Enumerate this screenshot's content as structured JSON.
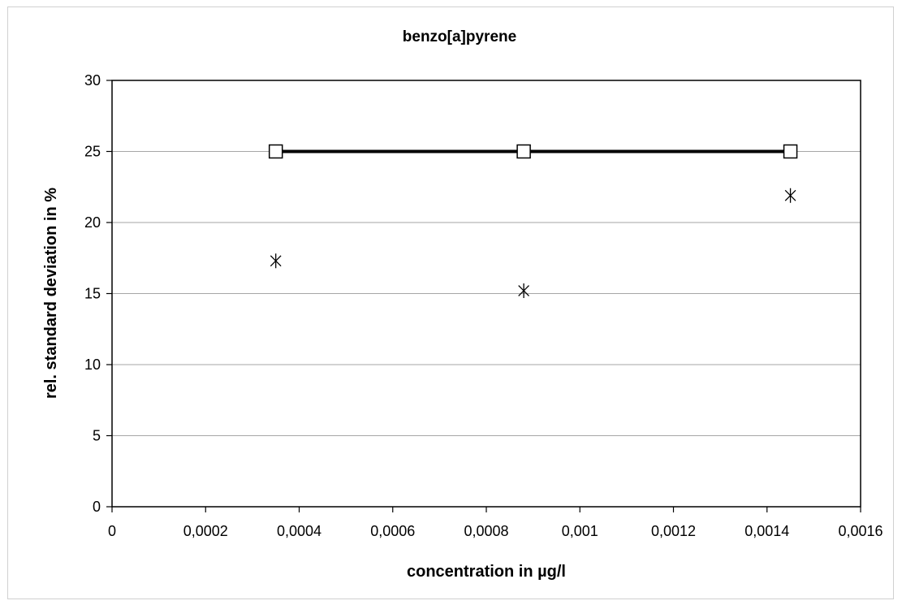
{
  "chart_data": {
    "type": "scatter",
    "title": "benzo[a]pyrene",
    "xlabel": "concentration in µg/l",
    "ylabel": "rel. standard deviation in %",
    "xlim": [
      0,
      0.0016
    ],
    "ylim": [
      0,
      30
    ],
    "x_ticks": [
      "0",
      "0,0002",
      "0,0004",
      "0,0006",
      "0,0008",
      "0,001",
      "0,0012",
      "0,0014",
      "0,0016"
    ],
    "y_ticks": [
      "0",
      "5",
      "10",
      "15",
      "20",
      "25",
      "30"
    ],
    "grid": "horizontal",
    "legend": "none",
    "series": [
      {
        "marker": "open-square",
        "line": true,
        "color": "#000000",
        "x": [
          0.00035,
          0.00088,
          0.00145
        ],
        "y": [
          25,
          25,
          25
        ]
      },
      {
        "marker": "asterisk",
        "line": false,
        "color": "#000000",
        "x": [
          0.00035,
          0.00088,
          0.00145
        ],
        "y": [
          17.3,
          15.2,
          21.9
        ]
      }
    ]
  }
}
